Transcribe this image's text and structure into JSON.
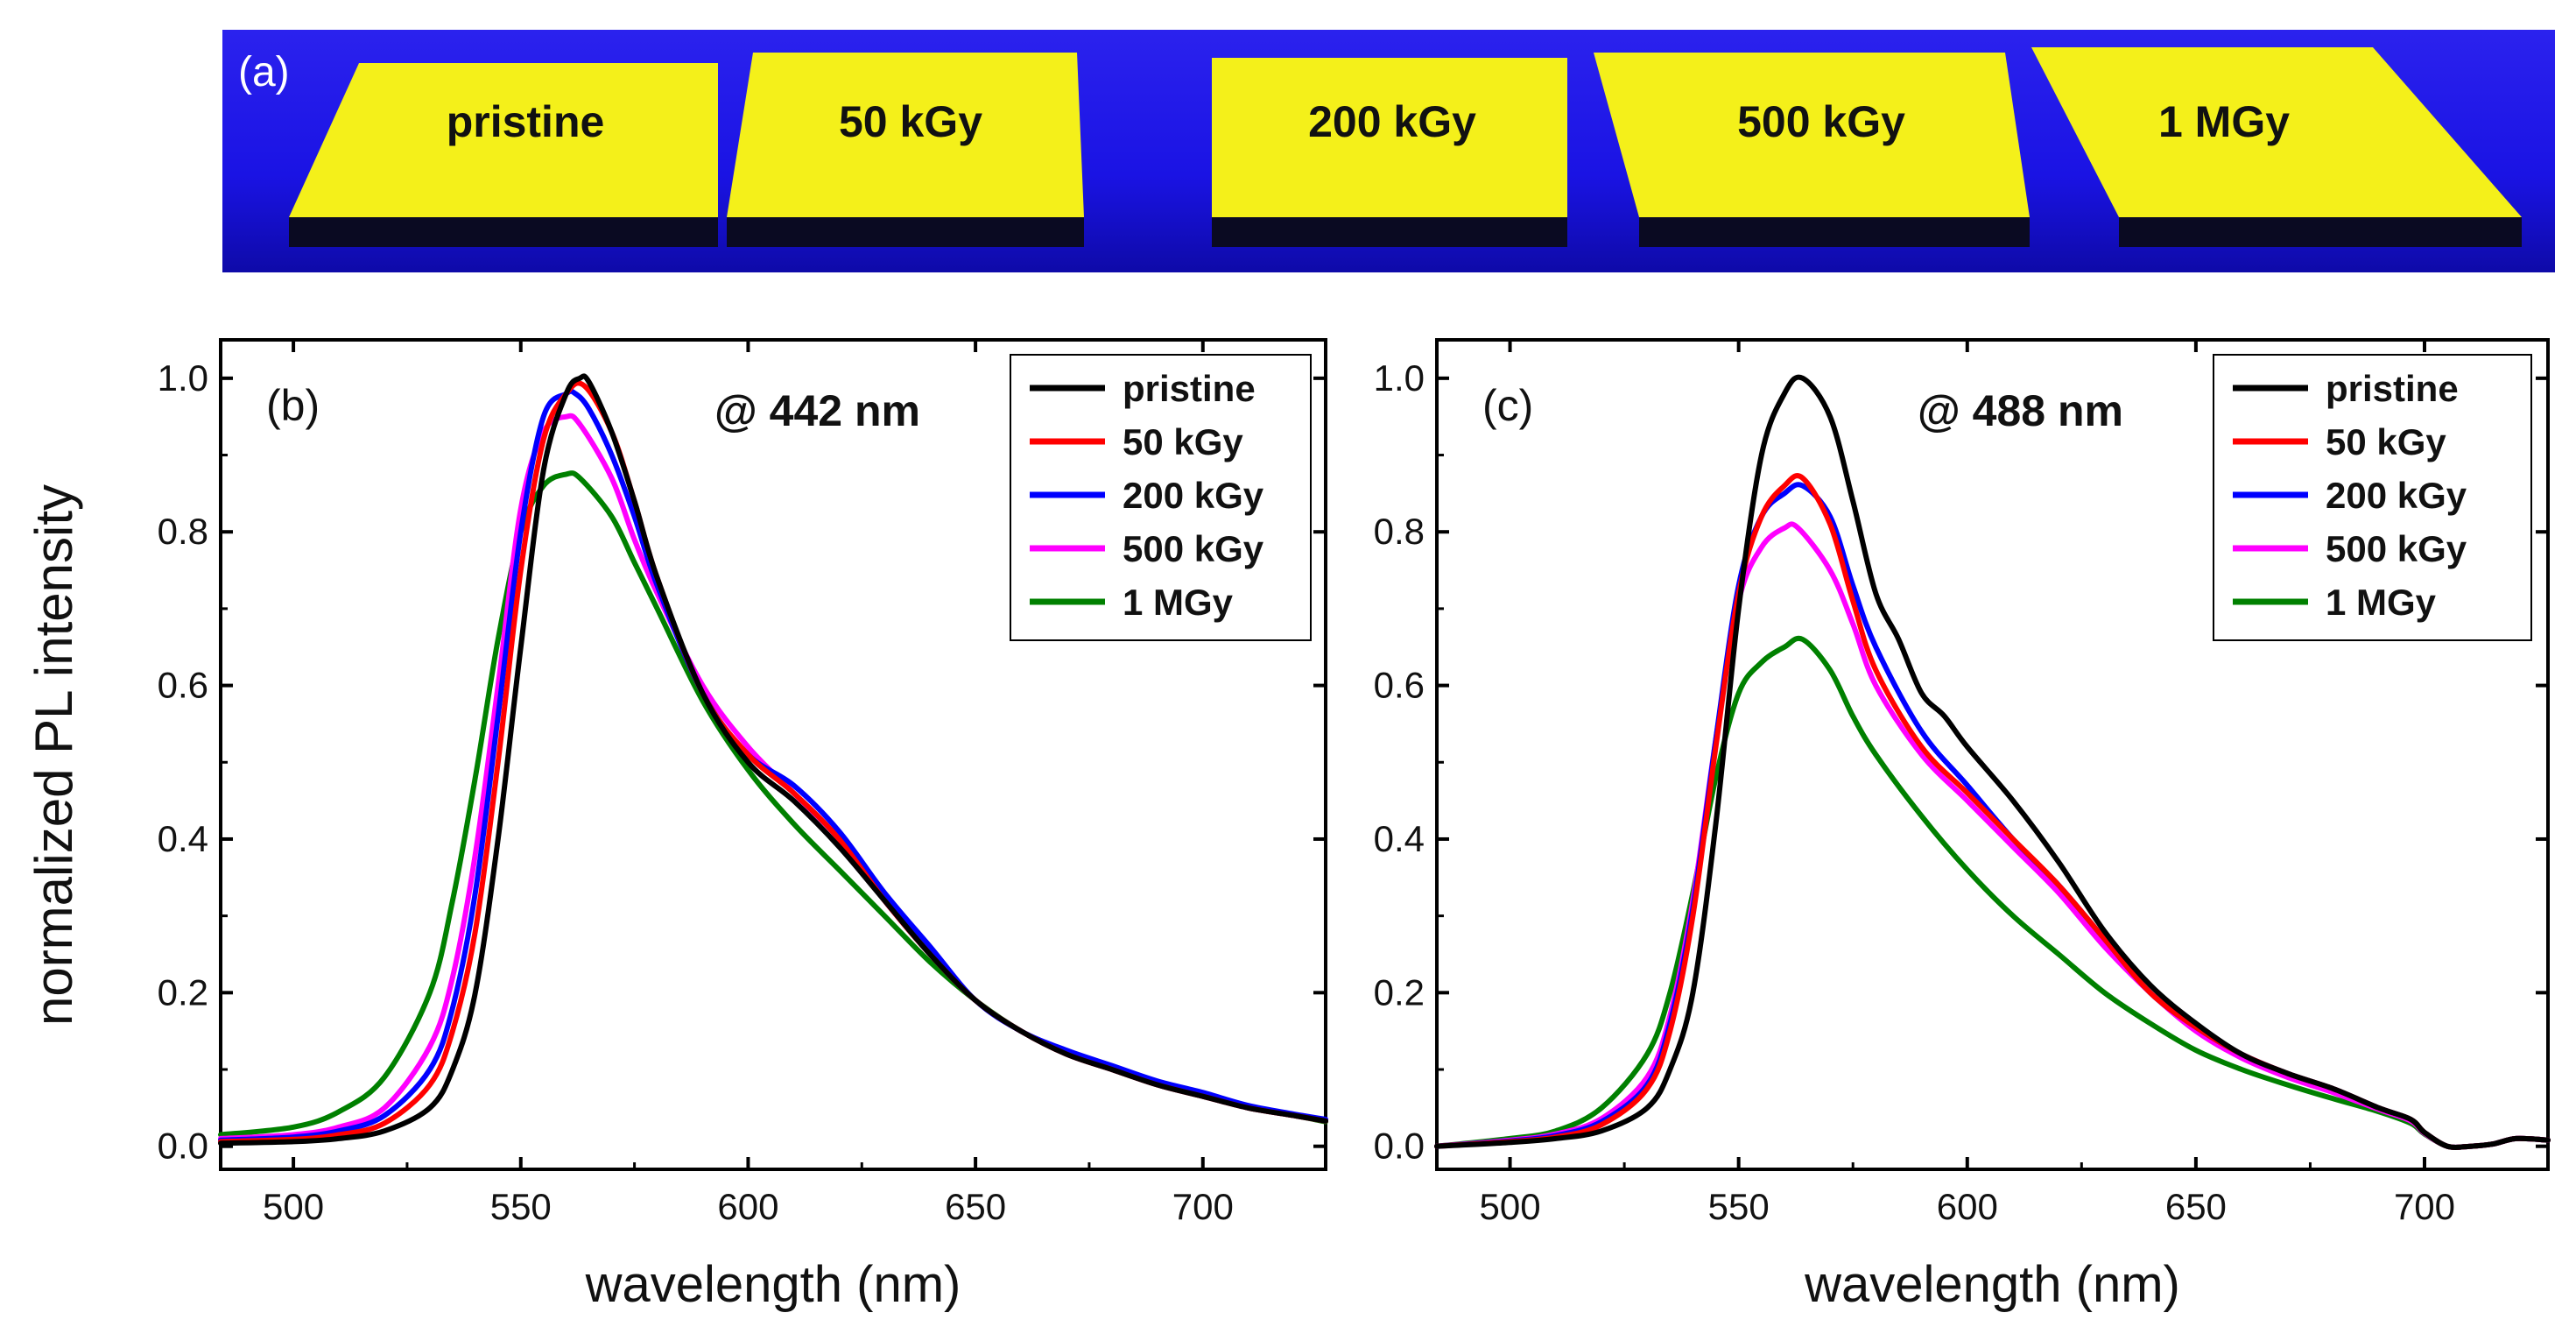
{
  "panel_a": {
    "label": "(a)",
    "samples": [
      "pristine",
      "50 kGy",
      "200 kGy",
      "500 kGy",
      "1 MGy"
    ],
    "colors": {
      "background": "#1b16e8",
      "sample": "#f4f01a",
      "sample_edge": "#0a0a22"
    }
  },
  "shared_ylabel": "normalized PL intensity",
  "series_colors": {
    "pristine": "#000000",
    "50 kGy": "#ff0000",
    "200 kGy": "#0000ff",
    "500 kGy": "#ff00ff",
    "1 MGy": "#008000"
  },
  "chart_data": [
    {
      "panel": "(b)",
      "type": "line",
      "annotation": "@ 442 nm",
      "xlabel": "wavelength (nm)",
      "ylabel": "normalized PL intensity",
      "xlim": [
        484,
        727
      ],
      "ylim": [
        -0.03,
        1.05
      ],
      "xticks": [
        500,
        550,
        600,
        650,
        700
      ],
      "yticks": [
        "0.0",
        "0.2",
        "0.4",
        "0.6",
        "0.8",
        "1.0"
      ],
      "legend_position": "top-right",
      "grid": false,
      "series": [
        {
          "name": "pristine",
          "x": [
            484,
            500,
            510,
            520,
            530,
            535,
            540,
            545,
            550,
            555,
            560,
            563,
            565,
            570,
            575,
            580,
            590,
            600,
            610,
            620,
            630,
            640,
            650,
            660,
            670,
            680,
            690,
            700,
            710,
            720,
            727
          ],
          "y": [
            0.004,
            0.006,
            0.01,
            0.02,
            0.05,
            0.1,
            0.2,
            0.4,
            0.65,
            0.88,
            0.98,
            1.0,
            0.995,
            0.93,
            0.84,
            0.74,
            0.59,
            0.5,
            0.45,
            0.39,
            0.32,
            0.25,
            0.19,
            0.15,
            0.12,
            0.1,
            0.08,
            0.065,
            0.05,
            0.04,
            0.033
          ]
        },
        {
          "name": "50 kGy",
          "x": [
            484,
            500,
            510,
            520,
            530,
            535,
            540,
            545,
            550,
            555,
            560,
            564,
            570,
            575,
            580,
            590,
            600,
            610,
            620,
            630,
            640,
            650,
            660,
            670,
            680,
            690,
            700,
            710,
            720,
            727
          ],
          "y": [
            0.006,
            0.009,
            0.015,
            0.03,
            0.08,
            0.15,
            0.28,
            0.5,
            0.75,
            0.92,
            0.98,
            0.99,
            0.93,
            0.84,
            0.74,
            0.59,
            0.51,
            0.46,
            0.4,
            0.32,
            0.25,
            0.19,
            0.15,
            0.12,
            0.1,
            0.08,
            0.065,
            0.05,
            0.04,
            0.033
          ]
        },
        {
          "name": "200 kGy",
          "x": [
            484,
            500,
            510,
            520,
            530,
            535,
            540,
            545,
            550,
            555,
            560,
            562,
            565,
            570,
            575,
            580,
            590,
            600,
            610,
            620,
            630,
            640,
            650,
            660,
            670,
            680,
            690,
            700,
            710,
            720,
            727
          ],
          "y": [
            0.008,
            0.012,
            0.02,
            0.04,
            0.1,
            0.18,
            0.33,
            0.56,
            0.8,
            0.95,
            0.98,
            0.98,
            0.96,
            0.9,
            0.82,
            0.73,
            0.59,
            0.51,
            0.47,
            0.41,
            0.33,
            0.26,
            0.19,
            0.15,
            0.125,
            0.105,
            0.085,
            0.07,
            0.053,
            0.042,
            0.035
          ]
        },
        {
          "name": "500 kGy",
          "x": [
            484,
            500,
            510,
            520,
            530,
            535,
            540,
            545,
            550,
            555,
            560,
            563,
            570,
            575,
            580,
            590,
            600,
            610,
            620,
            630,
            640,
            650,
            660,
            670,
            680,
            690,
            700,
            710,
            720,
            727
          ],
          "y": [
            0.01,
            0.015,
            0.025,
            0.05,
            0.13,
            0.22,
            0.38,
            0.6,
            0.83,
            0.93,
            0.95,
            0.94,
            0.87,
            0.79,
            0.72,
            0.6,
            0.52,
            0.46,
            0.4,
            0.32,
            0.25,
            0.19,
            0.15,
            0.12,
            0.1,
            0.08,
            0.065,
            0.05,
            0.04,
            0.033
          ]
        },
        {
          "name": "1 MGy",
          "x": [
            484,
            500,
            510,
            520,
            530,
            535,
            540,
            545,
            550,
            555,
            560,
            563,
            570,
            575,
            580,
            590,
            600,
            610,
            620,
            630,
            640,
            650,
            660,
            670,
            680,
            690,
            700,
            710,
            720,
            727
          ],
          "y": [
            0.015,
            0.025,
            0.045,
            0.09,
            0.2,
            0.32,
            0.48,
            0.66,
            0.8,
            0.86,
            0.875,
            0.87,
            0.82,
            0.76,
            0.7,
            0.58,
            0.49,
            0.42,
            0.36,
            0.3,
            0.24,
            0.19,
            0.15,
            0.12,
            0.1,
            0.08,
            0.065,
            0.05,
            0.04,
            0.032
          ]
        }
      ]
    },
    {
      "panel": "(c)",
      "type": "line",
      "annotation": "@ 488 nm",
      "xlabel": "wavelength (nm)",
      "ylabel": "normalized PL intensity",
      "xlim": [
        484,
        727
      ],
      "ylim": [
        -0.03,
        1.05
      ],
      "xticks": [
        500,
        550,
        600,
        650,
        700
      ],
      "yticks": [
        "0.0",
        "0.2",
        "0.4",
        "0.6",
        "0.8",
        "1.0"
      ],
      "legend_position": "top-right",
      "grid": false,
      "series": [
        {
          "name": "pristine",
          "x": [
            484,
            500,
            510,
            520,
            530,
            535,
            540,
            545,
            550,
            555,
            560,
            564,
            570,
            575,
            580,
            585,
            590,
            595,
            600,
            610,
            620,
            630,
            640,
            650,
            660,
            670,
            680,
            690,
            697,
            700,
            705,
            710,
            715,
            720,
            727
          ],
          "y": [
            0.0,
            0.005,
            0.01,
            0.02,
            0.05,
            0.1,
            0.2,
            0.42,
            0.7,
            0.9,
            0.98,
            1.0,
            0.95,
            0.84,
            0.72,
            0.66,
            0.59,
            0.56,
            0.52,
            0.45,
            0.37,
            0.28,
            0.21,
            0.16,
            0.12,
            0.095,
            0.075,
            0.05,
            0.035,
            0.018,
            0.0,
            0.0,
            0.003,
            0.01,
            0.008
          ]
        },
        {
          "name": "50 kGy",
          "x": [
            484,
            500,
            510,
            520,
            530,
            535,
            540,
            545,
            550,
            555,
            560,
            564,
            570,
            575,
            580,
            590,
            600,
            610,
            620,
            630,
            640,
            650,
            660,
            670,
            680,
            690,
            697,
            700,
            705,
            710,
            715,
            720,
            727
          ],
          "y": [
            0.0,
            0.006,
            0.012,
            0.028,
            0.075,
            0.15,
            0.3,
            0.52,
            0.72,
            0.82,
            0.86,
            0.87,
            0.81,
            0.71,
            0.62,
            0.52,
            0.46,
            0.4,
            0.34,
            0.27,
            0.2,
            0.155,
            0.12,
            0.095,
            0.075,
            0.05,
            0.035,
            0.018,
            0.0,
            0.0,
            0.003,
            0.01,
            0.008
          ]
        },
        {
          "name": "200 kGy",
          "x": [
            484,
            500,
            510,
            520,
            530,
            535,
            540,
            545,
            550,
            555,
            560,
            564,
            570,
            575,
            580,
            590,
            600,
            610,
            620,
            630,
            640,
            650,
            660,
            670,
            680,
            690,
            697,
            700,
            705,
            710,
            715,
            720,
            727
          ],
          "y": [
            0.0,
            0.007,
            0.014,
            0.032,
            0.08,
            0.16,
            0.31,
            0.53,
            0.73,
            0.82,
            0.85,
            0.86,
            0.82,
            0.73,
            0.65,
            0.54,
            0.47,
            0.4,
            0.34,
            0.27,
            0.2,
            0.155,
            0.12,
            0.095,
            0.075,
            0.05,
            0.035,
            0.018,
            0.0,
            0.0,
            0.003,
            0.01,
            0.008
          ]
        },
        {
          "name": "500 kGy",
          "x": [
            484,
            500,
            510,
            520,
            530,
            535,
            540,
            545,
            550,
            555,
            560,
            563,
            570,
            575,
            580,
            590,
            600,
            610,
            620,
            630,
            640,
            650,
            660,
            670,
            680,
            690,
            697,
            700,
            705,
            710,
            715,
            720,
            727
          ],
          "y": [
            0.0,
            0.008,
            0.016,
            0.036,
            0.09,
            0.17,
            0.32,
            0.53,
            0.71,
            0.78,
            0.805,
            0.805,
            0.75,
            0.68,
            0.6,
            0.51,
            0.45,
            0.39,
            0.33,
            0.26,
            0.2,
            0.15,
            0.115,
            0.09,
            0.07,
            0.048,
            0.033,
            0.017,
            0.0,
            0.0,
            0.003,
            0.01,
            0.008
          ]
        },
        {
          "name": "1 MGy",
          "x": [
            484,
            500,
            510,
            520,
            530,
            535,
            540,
            545,
            550,
            555,
            560,
            564,
            570,
            575,
            580,
            590,
            600,
            610,
            620,
            630,
            640,
            650,
            660,
            670,
            680,
            690,
            697,
            700,
            705,
            710,
            715,
            720,
            727
          ],
          "y": [
            0.0,
            0.01,
            0.02,
            0.05,
            0.12,
            0.2,
            0.33,
            0.48,
            0.59,
            0.63,
            0.65,
            0.66,
            0.62,
            0.56,
            0.51,
            0.43,
            0.36,
            0.3,
            0.25,
            0.2,
            0.16,
            0.125,
            0.1,
            0.08,
            0.062,
            0.045,
            0.03,
            0.016,
            0.0,
            0.0,
            0.003,
            0.01,
            0.008
          ]
        }
      ]
    }
  ]
}
